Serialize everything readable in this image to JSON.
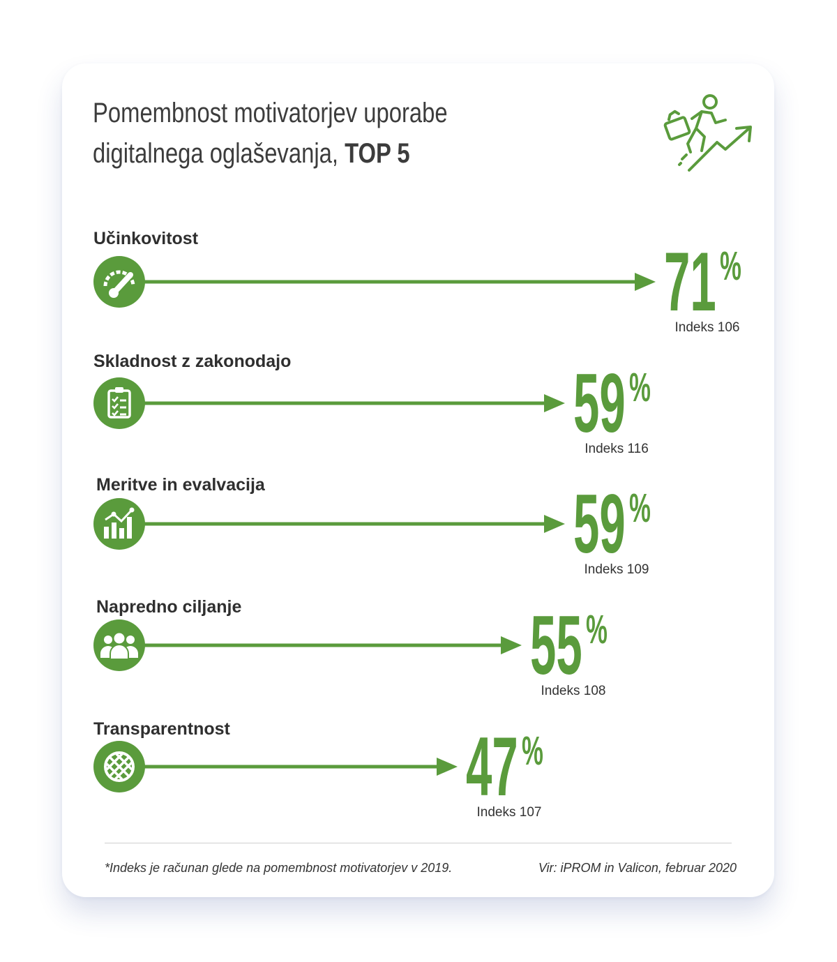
{
  "header": {
    "title_line1": "Pomembnost motivatorjev uporabe",
    "title_line2": "digitalnega oglaševanja,",
    "title_emphasis": "TOP 5",
    "icon": "businessman-climbing-growth-arrow-icon"
  },
  "chart_data": {
    "type": "bar",
    "orientation": "horizontal",
    "title": "Pomembnost motivatorjev uporabe digitalnega oglaševanja, TOP 5",
    "unit": "%",
    "categories": [
      "Učinkovitost",
      "Skladnost z zakonodajo",
      "Meritve in evalvacija",
      "Napredno ciljanje",
      "Transparentnost"
    ],
    "values": [
      71,
      59,
      59,
      55,
      47
    ],
    "index_prefix": "Indeks",
    "indices": [
      106,
      116,
      109,
      108,
      107
    ],
    "icons": [
      "speedometer-icon",
      "checklist-clipboard-icon",
      "bar-chart-growth-icon",
      "group-people-icon",
      "transparency-sphere-icon"
    ],
    "xlim": [
      0,
      71
    ],
    "bar_style": "arrow",
    "color": "#5a9b3c"
  },
  "footer": {
    "footnote": "*Indeks je računan glede na pomembnost motivatorjev v 2019.",
    "source": "Vir: iPROM in Valicon, februar 2020"
  },
  "colors": {
    "accent": "#5a9b3c",
    "text": "#3c3c3c"
  }
}
